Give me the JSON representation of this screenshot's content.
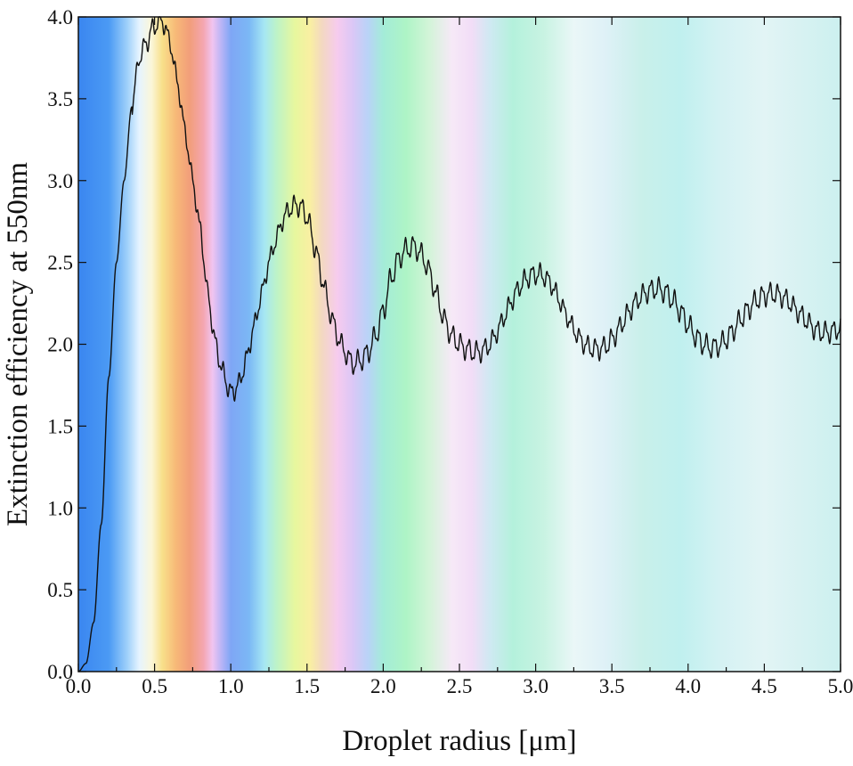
{
  "chart_data": {
    "type": "line",
    "title": "",
    "xlabel": "Droplet radius [μm]",
    "ylabel": "Extinction efficiency at 550nm",
    "xlim": [
      0,
      5
    ],
    "ylim": [
      0,
      4
    ],
    "x_ticks": [
      "0.0",
      "0.5",
      "1.0",
      "1.5",
      "2.0",
      "2.5",
      "3.0",
      "3.5",
      "4.0",
      "4.5",
      "5.0"
    ],
    "y_ticks": [
      "0.0",
      "0.5",
      "1.0",
      "1.5",
      "2.0",
      "2.5",
      "3.0",
      "3.5",
      "4.0"
    ],
    "grid": false,
    "line_color": "#111111",
    "background": "spectral color bands across radius",
    "background_stops": [
      {
        "x": 0.0,
        "color": "#3a86f0"
      },
      {
        "x": 0.2,
        "color": "#4b9af4"
      },
      {
        "x": 0.32,
        "color": "#9ed0fa"
      },
      {
        "x": 0.4,
        "color": "#e6f4ff"
      },
      {
        "x": 0.48,
        "color": "#fbf6d8"
      },
      {
        "x": 0.55,
        "color": "#f8e08a"
      },
      {
        "x": 0.64,
        "color": "#f7b978"
      },
      {
        "x": 0.73,
        "color": "#f29e7a"
      },
      {
        "x": 0.82,
        "color": "#f4a6b0"
      },
      {
        "x": 0.88,
        "color": "#f1c4f0"
      },
      {
        "x": 0.94,
        "color": "#b7b4f6"
      },
      {
        "x": 1.0,
        "color": "#7fa6f5"
      },
      {
        "x": 1.12,
        "color": "#7bb8f5"
      },
      {
        "x": 1.22,
        "color": "#a6e7f3"
      },
      {
        "x": 1.3,
        "color": "#bdf3c8"
      },
      {
        "x": 1.42,
        "color": "#e7f79e"
      },
      {
        "x": 1.52,
        "color": "#f9efa2"
      },
      {
        "x": 1.6,
        "color": "#f3d8c2"
      },
      {
        "x": 1.7,
        "color": "#f6cbee"
      },
      {
        "x": 1.8,
        "color": "#dbc7f6"
      },
      {
        "x": 1.9,
        "color": "#b9d3f7"
      },
      {
        "x": 2.0,
        "color": "#a4ecd8"
      },
      {
        "x": 2.15,
        "color": "#aef4c6"
      },
      {
        "x": 2.3,
        "color": "#d2f4d8"
      },
      {
        "x": 2.45,
        "color": "#f6e9f7"
      },
      {
        "x": 2.58,
        "color": "#f2ddf7"
      },
      {
        "x": 2.7,
        "color": "#cfe9f2"
      },
      {
        "x": 2.85,
        "color": "#b4f1dc"
      },
      {
        "x": 3.05,
        "color": "#c8f3e2"
      },
      {
        "x": 3.25,
        "color": "#eaf7f7"
      },
      {
        "x": 3.45,
        "color": "#dff1f7"
      },
      {
        "x": 3.7,
        "color": "#c9f0ea"
      },
      {
        "x": 3.95,
        "color": "#c0f0ef"
      },
      {
        "x": 4.2,
        "color": "#d4f2f3"
      },
      {
        "x": 4.5,
        "color": "#e2f4f5"
      },
      {
        "x": 5.0,
        "color": "#ccf0ef"
      }
    ],
    "series": [
      {
        "x": [
          0.0,
          0.05,
          0.1,
          0.15,
          0.2,
          0.25,
          0.3,
          0.35,
          0.4,
          0.45,
          0.5,
          0.55,
          0.6,
          0.65,
          0.7,
          0.75,
          0.8,
          0.85,
          0.9,
          0.95,
          1.0,
          1.05,
          1.1,
          1.15,
          1.2,
          1.25,
          1.3,
          1.35,
          1.4,
          1.45,
          1.5,
          1.55,
          1.6,
          1.65,
          1.7,
          1.75,
          1.8,
          1.85,
          1.9,
          1.95,
          2.0,
          2.05,
          2.1,
          2.15,
          2.2,
          2.25,
          2.3,
          2.35,
          2.4,
          2.45,
          2.5,
          2.55,
          2.6,
          2.65,
          2.7,
          2.75,
          2.8,
          2.85,
          2.9,
          2.95,
          3.0,
          3.05,
          3.1,
          3.15,
          3.2,
          3.25,
          3.3,
          3.35,
          3.4,
          3.45,
          3.5,
          3.55,
          3.6,
          3.65,
          3.7,
          3.75,
          3.8,
          3.85,
          3.9,
          3.95,
          4.0,
          4.05,
          4.1,
          4.15,
          4.2,
          4.25,
          4.3,
          4.35,
          4.4,
          4.45,
          4.5,
          4.55,
          4.6,
          4.65,
          4.7,
          4.75,
          4.8,
          4.85,
          4.9,
          4.95,
          5.0
        ],
        "y": [
          0.0,
          0.05,
          0.3,
          0.9,
          1.8,
          2.5,
          3.0,
          3.45,
          3.75,
          3.85,
          3.95,
          3.98,
          3.85,
          3.6,
          3.3,
          3.0,
          2.7,
          2.3,
          2.0,
          1.82,
          1.7,
          1.75,
          1.9,
          2.1,
          2.3,
          2.5,
          2.65,
          2.78,
          2.84,
          2.85,
          2.78,
          2.6,
          2.4,
          2.2,
          2.05,
          1.95,
          1.88,
          1.9,
          1.95,
          2.05,
          2.2,
          2.4,
          2.52,
          2.58,
          2.6,
          2.55,
          2.45,
          2.3,
          2.15,
          2.05,
          2.0,
          1.97,
          1.95,
          1.96,
          2.0,
          2.08,
          2.18,
          2.28,
          2.36,
          2.41,
          2.43,
          2.42,
          2.37,
          2.28,
          2.18,
          2.09,
          2.02,
          1.98,
          1.97,
          1.98,
          2.03,
          2.1,
          2.18,
          2.25,
          2.3,
          2.33,
          2.34,
          2.32,
          2.27,
          2.2,
          2.12,
          2.05,
          2.0,
          1.98,
          1.99,
          2.03,
          2.09,
          2.16,
          2.22,
          2.27,
          2.3,
          2.31,
          2.3,
          2.27,
          2.22,
          2.17,
          2.12,
          2.08,
          2.07,
          2.08,
          2.1
        ]
      }
    ]
  }
}
